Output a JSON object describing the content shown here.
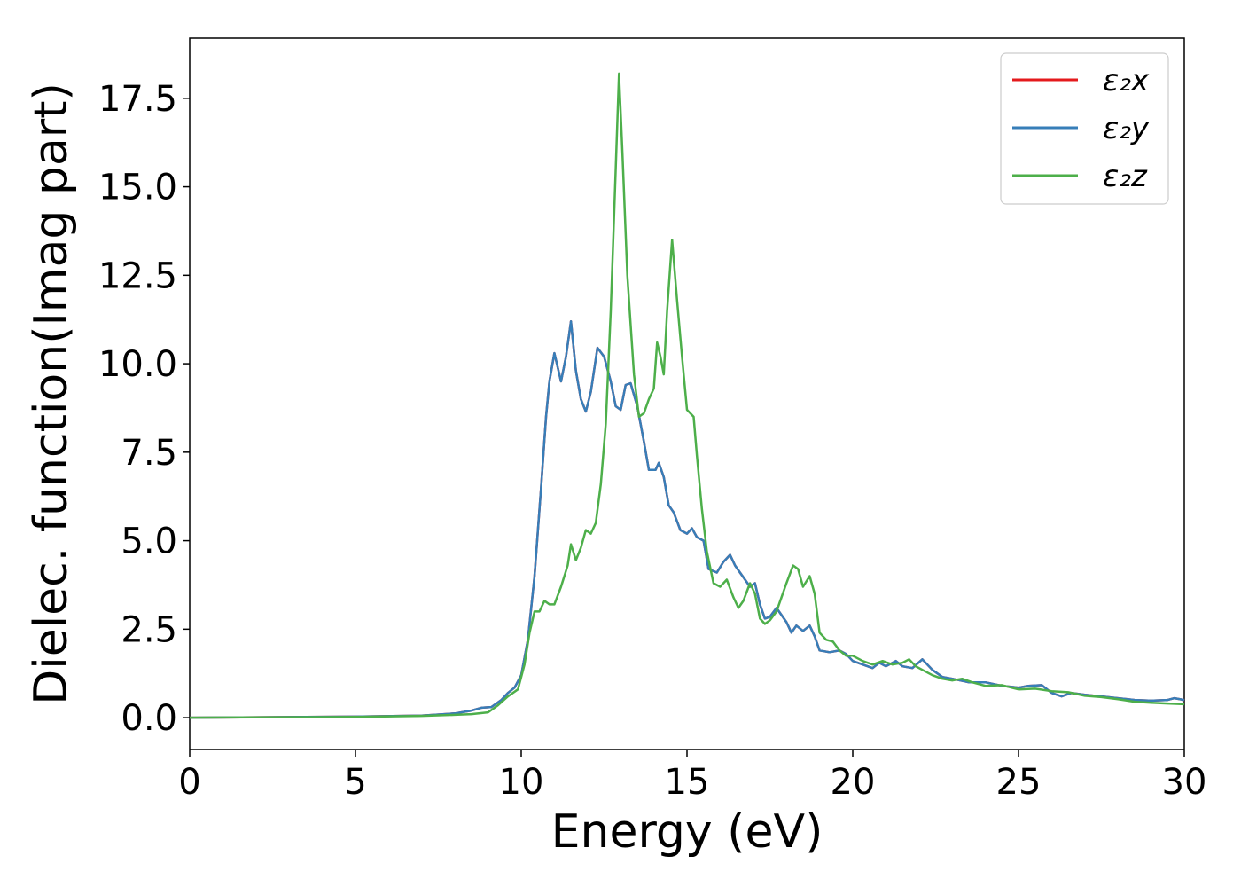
{
  "chart_data": {
    "type": "line",
    "title": "",
    "xlabel": "Energy (eV)",
    "ylabel": "Dielec. function(Imag part)",
    "xlim": [
      0,
      30
    ],
    "ylim": [
      -0.9,
      19.2
    ],
    "x_ticks": [
      0,
      5,
      10,
      15,
      20,
      25,
      30
    ],
    "y_ticks": [
      0.0,
      2.5,
      5.0,
      7.5,
      10.0,
      12.5,
      15.0,
      17.5
    ],
    "x_tick_labels": [
      "0",
      "5",
      "10",
      "15",
      "20",
      "25",
      "30"
    ],
    "y_tick_labels": [
      "0.0",
      "2.5",
      "5.0",
      "7.5",
      "10.0",
      "12.5",
      "15.0",
      "17.5"
    ],
    "grid": false,
    "legend_position": "top-right",
    "series": [
      {
        "name": "ε₂x",
        "color": "#e41a1c",
        "points": [
          [
            0,
            0
          ],
          [
            5,
            0.03
          ],
          [
            7,
            0.06
          ],
          [
            8,
            0.12
          ],
          [
            8.5,
            0.2
          ],
          [
            8.8,
            0.28
          ],
          [
            9.1,
            0.3
          ],
          [
            9.4,
            0.5
          ],
          [
            9.6,
            0.7
          ],
          [
            9.8,
            0.85
          ],
          [
            10.0,
            1.2
          ],
          [
            10.2,
            2.2
          ],
          [
            10.4,
            4.0
          ],
          [
            10.6,
            6.5
          ],
          [
            10.75,
            8.5
          ],
          [
            10.85,
            9.5
          ],
          [
            11.0,
            10.3
          ],
          [
            11.2,
            9.5
          ],
          [
            11.35,
            10.2
          ],
          [
            11.5,
            11.2
          ],
          [
            11.65,
            9.8
          ],
          [
            11.8,
            9.0
          ],
          [
            11.95,
            8.65
          ],
          [
            12.1,
            9.2
          ],
          [
            12.3,
            10.45
          ],
          [
            12.5,
            10.2
          ],
          [
            12.7,
            9.5
          ],
          [
            12.85,
            8.8
          ],
          [
            13.0,
            8.7
          ],
          [
            13.15,
            9.4
          ],
          [
            13.3,
            9.45
          ],
          [
            13.5,
            8.8
          ],
          [
            13.7,
            7.8
          ],
          [
            13.85,
            7.0
          ],
          [
            14.05,
            7.0
          ],
          [
            14.15,
            7.2
          ],
          [
            14.3,
            6.8
          ],
          [
            14.45,
            6.0
          ],
          [
            14.6,
            5.8
          ],
          [
            14.8,
            5.3
          ],
          [
            15.0,
            5.2
          ],
          [
            15.15,
            5.35
          ],
          [
            15.3,
            5.1
          ],
          [
            15.5,
            5.0
          ],
          [
            15.65,
            4.2
          ],
          [
            15.9,
            4.1
          ],
          [
            16.1,
            4.4
          ],
          [
            16.3,
            4.6
          ],
          [
            16.45,
            4.3
          ],
          [
            16.6,
            4.1
          ],
          [
            16.75,
            3.9
          ],
          [
            16.9,
            3.7
          ],
          [
            17.05,
            3.8
          ],
          [
            17.2,
            3.2
          ],
          [
            17.35,
            2.8
          ],
          [
            17.5,
            2.85
          ],
          [
            17.7,
            3.1
          ],
          [
            17.85,
            2.9
          ],
          [
            18.0,
            2.7
          ],
          [
            18.15,
            2.4
          ],
          [
            18.3,
            2.6
          ],
          [
            18.5,
            2.45
          ],
          [
            18.7,
            2.6
          ],
          [
            18.85,
            2.3
          ],
          [
            19.0,
            1.9
          ],
          [
            19.3,
            1.85
          ],
          [
            19.6,
            1.9
          ],
          [
            19.8,
            1.8
          ],
          [
            20.0,
            1.6
          ],
          [
            20.3,
            1.5
          ],
          [
            20.6,
            1.4
          ],
          [
            20.8,
            1.55
          ],
          [
            21.0,
            1.45
          ],
          [
            21.3,
            1.6
          ],
          [
            21.5,
            1.45
          ],
          [
            21.8,
            1.4
          ],
          [
            22.1,
            1.65
          ],
          [
            22.4,
            1.35
          ],
          [
            22.7,
            1.15
          ],
          [
            23.0,
            1.1
          ],
          [
            23.5,
            1.0
          ],
          [
            24.0,
            1.0
          ],
          [
            24.5,
            0.9
          ],
          [
            25.0,
            0.85
          ],
          [
            25.3,
            0.9
          ],
          [
            25.7,
            0.92
          ],
          [
            26.0,
            0.7
          ],
          [
            26.3,
            0.6
          ],
          [
            26.6,
            0.7
          ],
          [
            27.0,
            0.65
          ],
          [
            27.5,
            0.6
          ],
          [
            28.0,
            0.55
          ],
          [
            28.5,
            0.5
          ],
          [
            29.0,
            0.48
          ],
          [
            29.5,
            0.5
          ],
          [
            29.7,
            0.55
          ],
          [
            30.0,
            0.5
          ]
        ]
      },
      {
        "name": "ε₂y",
        "color": "#377eb8",
        "points": [
          [
            0,
            0
          ],
          [
            5,
            0.03
          ],
          [
            7,
            0.06
          ],
          [
            8,
            0.12
          ],
          [
            8.5,
            0.2
          ],
          [
            8.8,
            0.28
          ],
          [
            9.1,
            0.3
          ],
          [
            9.4,
            0.5
          ],
          [
            9.6,
            0.7
          ],
          [
            9.8,
            0.85
          ],
          [
            10.0,
            1.2
          ],
          [
            10.2,
            2.2
          ],
          [
            10.4,
            4.0
          ],
          [
            10.6,
            6.5
          ],
          [
            10.75,
            8.5
          ],
          [
            10.85,
            9.5
          ],
          [
            11.0,
            10.3
          ],
          [
            11.2,
            9.5
          ],
          [
            11.35,
            10.2
          ],
          [
            11.5,
            11.2
          ],
          [
            11.65,
            9.8
          ],
          [
            11.8,
            9.0
          ],
          [
            11.95,
            8.65
          ],
          [
            12.1,
            9.2
          ],
          [
            12.3,
            10.45
          ],
          [
            12.5,
            10.2
          ],
          [
            12.7,
            9.5
          ],
          [
            12.85,
            8.8
          ],
          [
            13.0,
            8.7
          ],
          [
            13.15,
            9.4
          ],
          [
            13.3,
            9.45
          ],
          [
            13.5,
            8.8
          ],
          [
            13.7,
            7.8
          ],
          [
            13.85,
            7.0
          ],
          [
            14.05,
            7.0
          ],
          [
            14.15,
            7.2
          ],
          [
            14.3,
            6.8
          ],
          [
            14.45,
            6.0
          ],
          [
            14.6,
            5.8
          ],
          [
            14.8,
            5.3
          ],
          [
            15.0,
            5.2
          ],
          [
            15.15,
            5.35
          ],
          [
            15.3,
            5.1
          ],
          [
            15.5,
            5.0
          ],
          [
            15.65,
            4.2
          ],
          [
            15.9,
            4.1
          ],
          [
            16.1,
            4.4
          ],
          [
            16.3,
            4.6
          ],
          [
            16.45,
            4.3
          ],
          [
            16.6,
            4.1
          ],
          [
            16.75,
            3.9
          ],
          [
            16.9,
            3.7
          ],
          [
            17.05,
            3.8
          ],
          [
            17.2,
            3.2
          ],
          [
            17.35,
            2.8
          ],
          [
            17.5,
            2.85
          ],
          [
            17.7,
            3.1
          ],
          [
            17.85,
            2.9
          ],
          [
            18.0,
            2.7
          ],
          [
            18.15,
            2.4
          ],
          [
            18.3,
            2.6
          ],
          [
            18.5,
            2.45
          ],
          [
            18.7,
            2.6
          ],
          [
            18.85,
            2.3
          ],
          [
            19.0,
            1.9
          ],
          [
            19.3,
            1.85
          ],
          [
            19.6,
            1.9
          ],
          [
            19.8,
            1.8
          ],
          [
            20.0,
            1.6
          ],
          [
            20.3,
            1.5
          ],
          [
            20.6,
            1.4
          ],
          [
            20.8,
            1.55
          ],
          [
            21.0,
            1.45
          ],
          [
            21.3,
            1.6
          ],
          [
            21.5,
            1.45
          ],
          [
            21.8,
            1.4
          ],
          [
            22.1,
            1.65
          ],
          [
            22.4,
            1.35
          ],
          [
            22.7,
            1.15
          ],
          [
            23.0,
            1.1
          ],
          [
            23.5,
            1.0
          ],
          [
            24.0,
            1.0
          ],
          [
            24.5,
            0.9
          ],
          [
            25.0,
            0.85
          ],
          [
            25.3,
            0.9
          ],
          [
            25.7,
            0.92
          ],
          [
            26.0,
            0.7
          ],
          [
            26.3,
            0.6
          ],
          [
            26.6,
            0.7
          ],
          [
            27.0,
            0.65
          ],
          [
            27.5,
            0.6
          ],
          [
            28.0,
            0.55
          ],
          [
            28.5,
            0.5
          ],
          [
            29.0,
            0.48
          ],
          [
            29.5,
            0.5
          ],
          [
            29.7,
            0.55
          ],
          [
            30.0,
            0.5
          ]
        ]
      },
      {
        "name": "ε₂z",
        "color": "#4daf4a",
        "points": [
          [
            0,
            0
          ],
          [
            5,
            0.02
          ],
          [
            7,
            0.05
          ],
          [
            8,
            0.08
          ],
          [
            8.5,
            0.1
          ],
          [
            9.0,
            0.15
          ],
          [
            9.3,
            0.35
          ],
          [
            9.6,
            0.6
          ],
          [
            9.9,
            0.8
          ],
          [
            10.1,
            1.5
          ],
          [
            10.25,
            2.4
          ],
          [
            10.4,
            3.0
          ],
          [
            10.55,
            3.0
          ],
          [
            10.7,
            3.3
          ],
          [
            10.85,
            3.2
          ],
          [
            11.0,
            3.2
          ],
          [
            11.2,
            3.7
          ],
          [
            11.4,
            4.3
          ],
          [
            11.5,
            4.9
          ],
          [
            11.65,
            4.45
          ],
          [
            11.8,
            4.8
          ],
          [
            11.95,
            5.3
          ],
          [
            12.1,
            5.2
          ],
          [
            12.25,
            5.5
          ],
          [
            12.4,
            6.6
          ],
          [
            12.55,
            8.3
          ],
          [
            12.7,
            11.5
          ],
          [
            12.85,
            15.5
          ],
          [
            12.95,
            18.2
          ],
          [
            13.05,
            16.0
          ],
          [
            13.2,
            12.5
          ],
          [
            13.4,
            9.7
          ],
          [
            13.55,
            8.5
          ],
          [
            13.7,
            8.6
          ],
          [
            13.85,
            9.0
          ],
          [
            14.0,
            9.3
          ],
          [
            14.1,
            10.6
          ],
          [
            14.2,
            10.2
          ],
          [
            14.3,
            9.7
          ],
          [
            14.4,
            11.5
          ],
          [
            14.55,
            13.5
          ],
          [
            14.7,
            11.8
          ],
          [
            14.85,
            10.2
          ],
          [
            15.0,
            8.7
          ],
          [
            15.1,
            8.6
          ],
          [
            15.2,
            8.5
          ],
          [
            15.3,
            7.4
          ],
          [
            15.45,
            5.9
          ],
          [
            15.6,
            4.7
          ],
          [
            15.8,
            3.8
          ],
          [
            16.0,
            3.7
          ],
          [
            16.2,
            3.9
          ],
          [
            16.4,
            3.4
          ],
          [
            16.55,
            3.1
          ],
          [
            16.7,
            3.3
          ],
          [
            16.9,
            3.8
          ],
          [
            17.05,
            3.5
          ],
          [
            17.2,
            2.8
          ],
          [
            17.35,
            2.65
          ],
          [
            17.5,
            2.75
          ],
          [
            17.7,
            3.0
          ],
          [
            17.85,
            3.4
          ],
          [
            18.0,
            3.8
          ],
          [
            18.2,
            4.3
          ],
          [
            18.35,
            4.2
          ],
          [
            18.5,
            3.7
          ],
          [
            18.7,
            4.0
          ],
          [
            18.85,
            3.5
          ],
          [
            19.0,
            2.4
          ],
          [
            19.2,
            2.2
          ],
          [
            19.4,
            2.15
          ],
          [
            19.6,
            1.9
          ],
          [
            19.8,
            1.75
          ],
          [
            20.0,
            1.75
          ],
          [
            20.3,
            1.6
          ],
          [
            20.6,
            1.5
          ],
          [
            20.9,
            1.6
          ],
          [
            21.2,
            1.5
          ],
          [
            21.5,
            1.55
          ],
          [
            21.7,
            1.65
          ],
          [
            21.9,
            1.45
          ],
          [
            22.1,
            1.35
          ],
          [
            22.4,
            1.2
          ],
          [
            22.7,
            1.1
          ],
          [
            23.0,
            1.05
          ],
          [
            23.3,
            1.1
          ],
          [
            23.6,
            1.0
          ],
          [
            24.0,
            0.9
          ],
          [
            24.5,
            0.92
          ],
          [
            25.0,
            0.8
          ],
          [
            25.5,
            0.82
          ],
          [
            26.0,
            0.75
          ],
          [
            26.5,
            0.72
          ],
          [
            27.0,
            0.62
          ],
          [
            27.5,
            0.58
          ],
          [
            28.0,
            0.52
          ],
          [
            28.5,
            0.45
          ],
          [
            29.0,
            0.42
          ],
          [
            29.5,
            0.4
          ],
          [
            30.0,
            0.38
          ]
        ]
      }
    ]
  }
}
